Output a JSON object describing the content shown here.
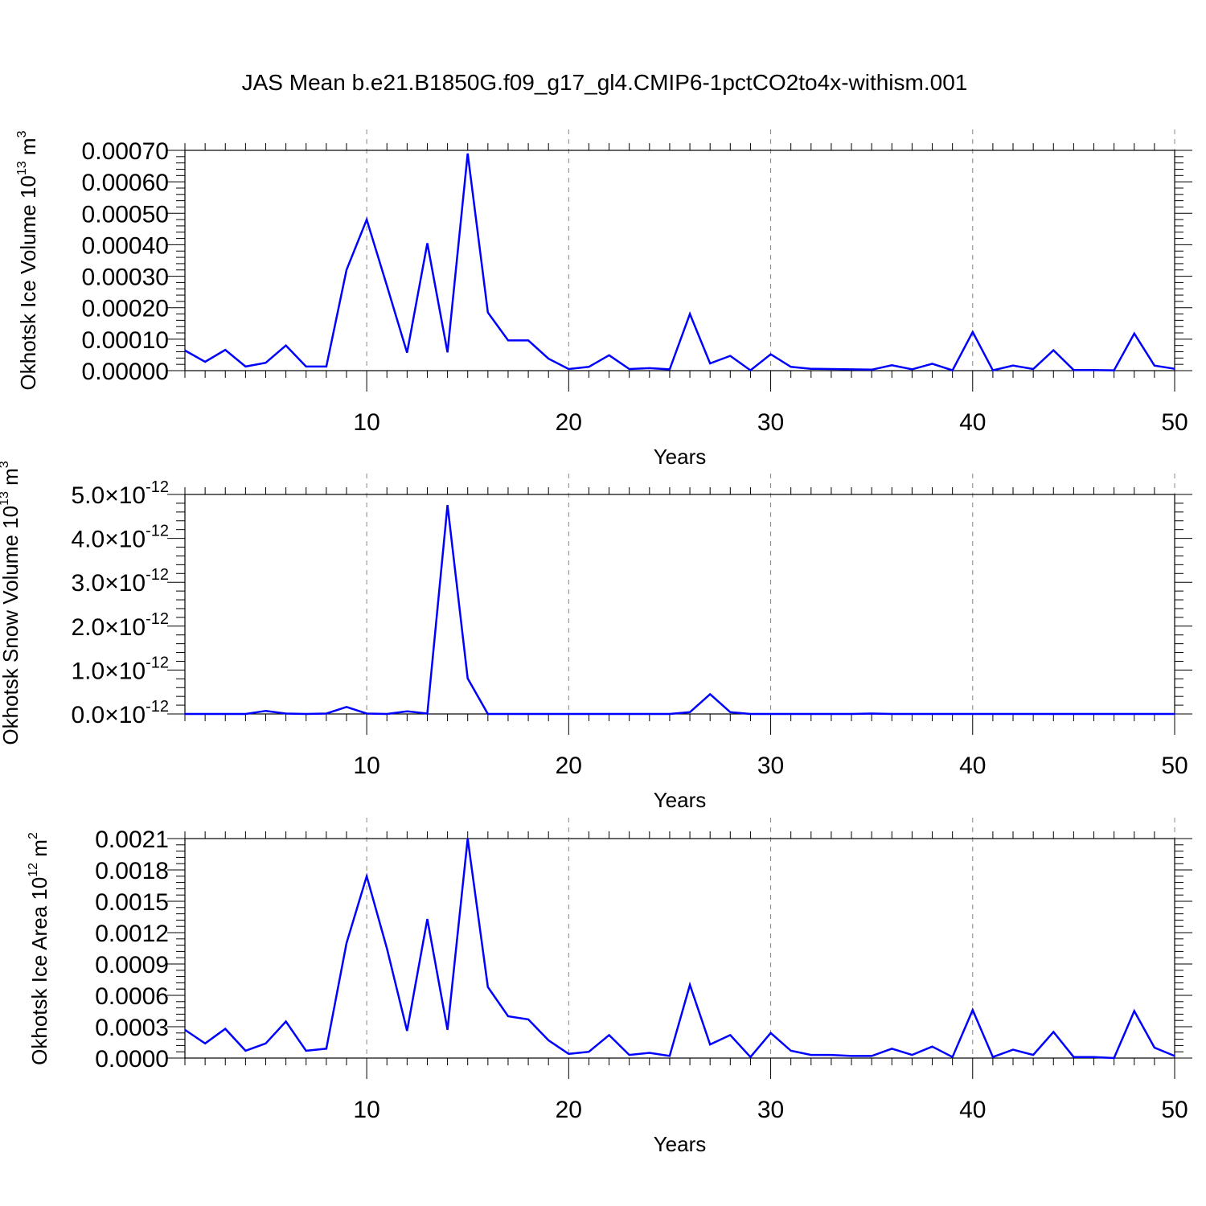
{
  "title": "JAS Mean b.e21.B1850G.f09_g17_gl4.CMIP6-1pctCO2to4x-withism.001",
  "colors": {
    "line": "#0000ff",
    "axes": "#000000",
    "grid": "#888888"
  },
  "chart_data": [
    {
      "type": "line",
      "xlabel": "Years",
      "ylabel": {
        "text": "Okhotsk Ice Volume 10",
        "sup": "13",
        "unit": " m",
        "unit_sup": "3"
      },
      "xlim": [
        1,
        50
      ],
      "ylim": [
        0,
        0.0007
      ],
      "x_ticks": [
        "10",
        "20",
        "30",
        "40",
        "50"
      ],
      "y_ticks": [
        {
          "value": 0.0,
          "label": "0.00000"
        },
        {
          "value": 0.0001,
          "label": "0.00010"
        },
        {
          "value": 0.0002,
          "label": "0.00020"
        },
        {
          "value": 0.0003,
          "label": "0.00030"
        },
        {
          "value": 0.0004,
          "label": "0.00040"
        },
        {
          "value": 0.0005,
          "label": "0.00050"
        },
        {
          "value": 0.0006,
          "label": "0.00060"
        },
        {
          "value": 0.0007,
          "label": "0.00070"
        }
      ],
      "grid_x": true,
      "values": [
        6.4e-05,
        2.8e-05,
        6.6e-05,
        1.3e-05,
        2.5e-05,
        8e-05,
        1.3e-05,
        1.3e-05,
        0.00032,
        0.00048,
        0.00027,
        5.7e-05,
        0.000405,
        5.8e-05,
        0.00069,
        0.000185,
        9.6e-05,
        9.6e-05,
        3.8e-05,
        5e-06,
        1.2e-05,
        4.9e-05,
        5e-06,
        8e-06,
        4e-06,
        0.00018,
        2.3e-05,
        4.7e-05,
        1e-06,
        5.2e-05,
        1.2e-05,
        6e-06,
        5e-06,
        4e-06,
        3e-06,
        1.7e-05,
        4e-06,
        2.2e-05,
        1e-06,
        0.000123,
        1e-06,
        1.6e-05,
        5e-06,
        6.5e-05,
        2e-06,
        2e-06,
        1e-06,
        0.000118,
        1.6e-05,
        6e-06
      ]
    },
    {
      "type": "line",
      "xlabel": "Years",
      "ylabel": {
        "text": "Okhotsk Snow Volume 10",
        "sup": "13",
        "unit": " m",
        "unit_sup": "3"
      },
      "xlim": [
        1,
        50
      ],
      "ylim": [
        0,
        5e-12
      ],
      "x_ticks": [
        "10",
        "20",
        "30",
        "40",
        "50"
      ],
      "y_ticks": [
        {
          "value": 0.0,
          "label": "0.0",
          "times": "×",
          "exp_base": "10",
          "exp": "-12"
        },
        {
          "value": 1e-12,
          "label": "1.0",
          "times": "×",
          "exp_base": "10",
          "exp": "-12"
        },
        {
          "value": 2e-12,
          "label": "2.0",
          "times": "×",
          "exp_base": "10",
          "exp": "-12"
        },
        {
          "value": 3e-12,
          "label": "3.0",
          "times": "×",
          "exp_base": "10",
          "exp": "-12"
        },
        {
          "value": 4e-12,
          "label": "4.0",
          "times": "×",
          "exp_base": "10",
          "exp": "-12"
        },
        {
          "value": 5e-12,
          "label": "5.0",
          "times": "×",
          "exp_base": "10",
          "exp": "-12"
        }
      ],
      "grid_x": true,
      "values": [
        0.0,
        0.0,
        0.0,
        0.0,
        7e-14,
        1e-14,
        0.0,
        1e-14,
        1.6e-13,
        1e-14,
        0.0,
        6e-14,
        1e-14,
        4.76e-12,
        8.1e-13,
        0.0,
        0.0,
        0.0,
        0.0,
        0.0,
        0.0,
        0.0,
        0.0,
        0.0,
        0.0,
        4e-14,
        4.5e-13,
        4e-14,
        0.0,
        0.0,
        0.0,
        0.0,
        0.0,
        0.0,
        1e-14,
        0.0,
        0.0,
        0.0,
        0.0,
        0.0,
        0.0,
        0.0,
        0.0,
        0.0,
        0.0,
        0.0,
        0.0,
        0.0,
        0.0,
        0.0
      ]
    },
    {
      "type": "line",
      "xlabel": "Years",
      "ylabel": {
        "text": "Okhotsk Ice Area 10",
        "sup": "12",
        "unit": " m",
        "unit_sup": "2"
      },
      "xlim": [
        1,
        50
      ],
      "ylim": [
        0,
        0.0021
      ],
      "x_ticks": [
        "10",
        "20",
        "30",
        "40",
        "50"
      ],
      "y_ticks": [
        {
          "value": 0.0,
          "label": "0.0000"
        },
        {
          "value": 0.0003,
          "label": "0.0003"
        },
        {
          "value": 0.0006,
          "label": "0.0006"
        },
        {
          "value": 0.0009,
          "label": "0.0009"
        },
        {
          "value": 0.0012,
          "label": "0.0012"
        },
        {
          "value": 0.0015,
          "label": "0.0015"
        },
        {
          "value": 0.0018,
          "label": "0.0018"
        },
        {
          "value": 0.0021,
          "label": "0.0021"
        }
      ],
      "grid_x": true,
      "values": [
        0.00027,
        0.00014,
        0.00028,
        7e-05,
        0.00014,
        0.00035,
        7e-05,
        9e-05,
        0.0011,
        0.00174,
        0.00105,
        0.00026,
        0.00133,
        0.00027,
        0.0021,
        0.00068,
        0.0004,
        0.00037,
        0.00017,
        4e-05,
        6e-05,
        0.00022,
        3e-05,
        5e-05,
        2e-05,
        0.0007,
        0.00013,
        0.00022,
        1e-05,
        0.00024,
        7e-05,
        3e-05,
        3e-05,
        2e-05,
        2e-05,
        9e-05,
        3e-05,
        0.00011,
        1e-05,
        0.00046,
        1e-05,
        8e-05,
        3e-05,
        0.00025,
        1e-05,
        1e-05,
        0.0,
        0.00045,
        0.0001,
        2e-05
      ]
    }
  ]
}
